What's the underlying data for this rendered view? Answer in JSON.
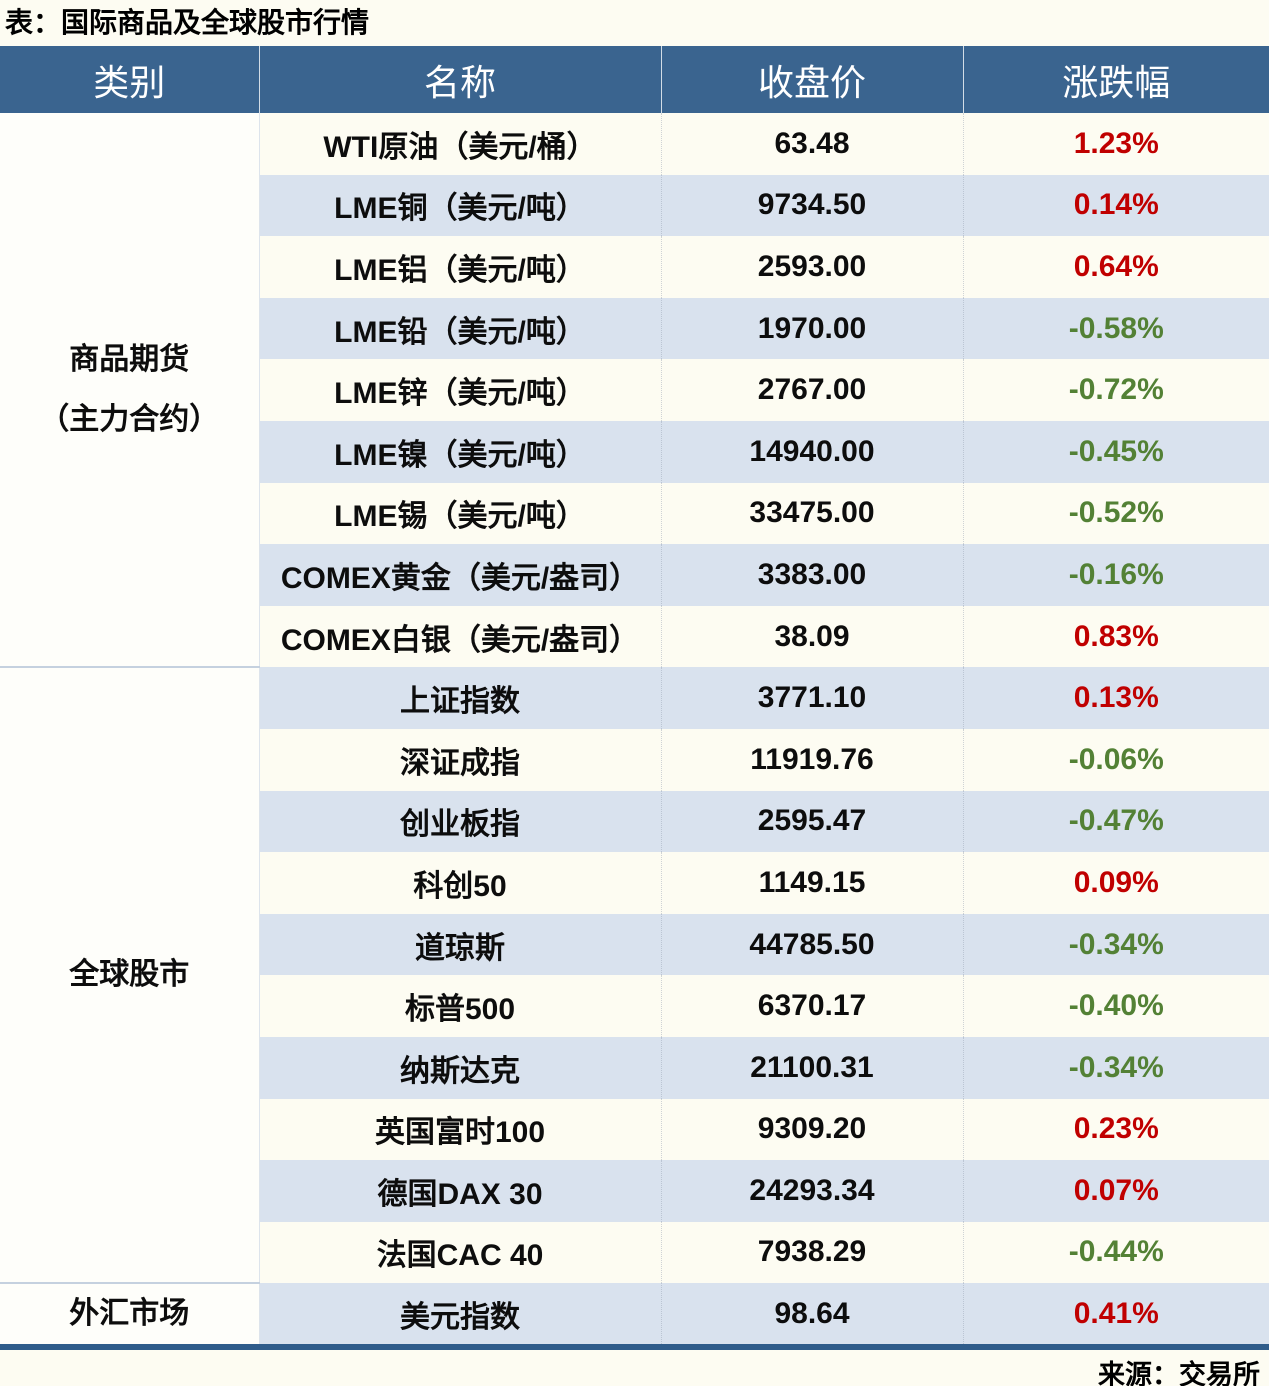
{
  "page": {
    "title": "表：国际商品及全球股市行情",
    "source": "来源：交易所"
  },
  "colors": {
    "header_bg": "#3A648F",
    "header_text": "#FFFFFF",
    "stripe_bg": "#D9E2EE",
    "plain_bg": "#FDFCF2",
    "category_bg": "#FEFEFA",
    "up": "#C00000",
    "down": "#538135",
    "bottom_border": "#2F5C8A",
    "group_divider": "#C5D1DF"
  },
  "table": {
    "headers": [
      "类别",
      "名称",
      "收盘价",
      "涨跌幅"
    ],
    "groups": [
      {
        "category": [
          "商品期货",
          "（主力合约）"
        ],
        "rows": [
          {
            "name": "WTI原油（美元/桶）",
            "close": "63.48",
            "change": "1.23%",
            "direction": "up"
          },
          {
            "name": "LME铜（美元/吨）",
            "close": "9734.50",
            "change": "0.14%",
            "direction": "up"
          },
          {
            "name": "LME铝（美元/吨）",
            "close": "2593.00",
            "change": "0.64%",
            "direction": "up"
          },
          {
            "name": "LME铅（美元/吨）",
            "close": "1970.00",
            "change": "-0.58%",
            "direction": "down"
          },
          {
            "name": "LME锌（美元/吨）",
            "close": "2767.00",
            "change": "-0.72%",
            "direction": "down"
          },
          {
            "name": "LME镍（美元/吨）",
            "close": "14940.00",
            "change": "-0.45%",
            "direction": "down"
          },
          {
            "name": "LME锡（美元/吨）",
            "close": "33475.00",
            "change": "-0.52%",
            "direction": "down"
          },
          {
            "name": "COMEX黄金（美元/盎司）",
            "close": "3383.00",
            "change": "-0.16%",
            "direction": "down"
          },
          {
            "name": "COMEX白银（美元/盎司）",
            "close": "38.09",
            "change": "0.83%",
            "direction": "up"
          }
        ]
      },
      {
        "category": [
          "全球股市"
        ],
        "rows": [
          {
            "name": "上证指数",
            "close": "3771.10",
            "change": "0.13%",
            "direction": "up"
          },
          {
            "name": "深证成指",
            "close": "11919.76",
            "change": "-0.06%",
            "direction": "down"
          },
          {
            "name": "创业板指",
            "close": "2595.47",
            "change": "-0.47%",
            "direction": "down"
          },
          {
            "name": "科创50",
            "close": "1149.15",
            "change": "0.09%",
            "direction": "up"
          },
          {
            "name": "道琼斯",
            "close": "44785.50",
            "change": "-0.34%",
            "direction": "down"
          },
          {
            "name": "标普500",
            "close": "6370.17",
            "change": "-0.40%",
            "direction": "down"
          },
          {
            "name": "纳斯达克",
            "close": "21100.31",
            "change": "-0.34%",
            "direction": "down"
          },
          {
            "name": "英国富时100",
            "close": "9309.20",
            "change": "0.23%",
            "direction": "up"
          },
          {
            "name": "德国DAX 30",
            "close": "24293.34",
            "change": "0.07%",
            "direction": "up"
          },
          {
            "name": "法国CAC 40",
            "close": "7938.29",
            "change": "-0.44%",
            "direction": "down"
          }
        ]
      },
      {
        "category": [
          "外汇市场"
        ],
        "rows": [
          {
            "name": "美元指数",
            "close": "98.64",
            "change": "0.41%",
            "direction": "up"
          }
        ]
      }
    ]
  },
  "chart_data": {
    "type": "table",
    "title": "表：国际商品及全球股市行情",
    "columns": [
      "类别",
      "名称",
      "收盘价",
      "涨跌幅"
    ],
    "rows": [
      [
        "商品期货（主力合约）",
        "WTI原油（美元/桶）",
        63.48,
        "1.23%"
      ],
      [
        "商品期货（主力合约）",
        "LME铜（美元/吨）",
        9734.5,
        "0.14%"
      ],
      [
        "商品期货（主力合约）",
        "LME铝（美元/吨）",
        2593.0,
        "0.64%"
      ],
      [
        "商品期货（主力合约）",
        "LME铅（美元/吨）",
        1970.0,
        "-0.58%"
      ],
      [
        "商品期货（主力合约）",
        "LME锌（美元/吨）",
        2767.0,
        "-0.72%"
      ],
      [
        "商品期货（主力合约）",
        "LME镍（美元/吨）",
        14940.0,
        "-0.45%"
      ],
      [
        "商品期货（主力合约）",
        "LME锡（美元/吨）",
        33475.0,
        "-0.52%"
      ],
      [
        "商品期货（主力合约）",
        "COMEX黄金（美元/盎司）",
        3383.0,
        "-0.16%"
      ],
      [
        "商品期货（主力合约）",
        "COMEX白银（美元/盎司）",
        38.09,
        "0.83%"
      ],
      [
        "全球股市",
        "上证指数",
        3771.1,
        "0.13%"
      ],
      [
        "全球股市",
        "深证成指",
        11919.76,
        "-0.06%"
      ],
      [
        "全球股市",
        "创业板指",
        2595.47,
        "-0.47%"
      ],
      [
        "全球股市",
        "科创50",
        1149.15,
        "0.09%"
      ],
      [
        "全球股市",
        "道琼斯",
        44785.5,
        "-0.34%"
      ],
      [
        "全球股市",
        "标普500",
        6370.17,
        "-0.40%"
      ],
      [
        "全球股市",
        "纳斯达克",
        21100.31,
        "-0.34%"
      ],
      [
        "全球股市",
        "英国富时100",
        9309.2,
        "0.23%"
      ],
      [
        "全球股市",
        "德国DAX 30",
        24293.34,
        "0.07%"
      ],
      [
        "全球股市",
        "法国CAC 40",
        7938.29,
        "-0.44%"
      ],
      [
        "外汇市场",
        "美元指数",
        98.64,
        "0.41%"
      ]
    ],
    "source": "来源：交易所",
    "notes": "positive change = red (#C00000), negative change = green (#538135), striped rows"
  }
}
